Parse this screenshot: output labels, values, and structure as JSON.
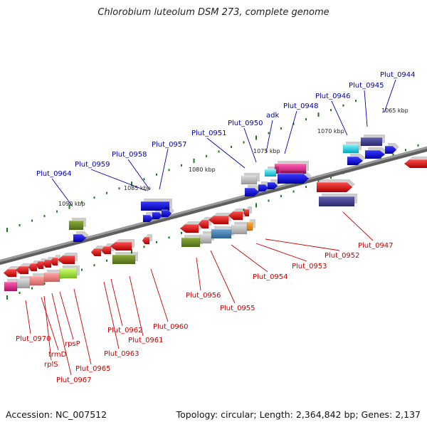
{
  "title": "Chlorobium luteolum DSM 273, complete genome",
  "accession": "Accession: NC_007512",
  "topology": "Topology: circular; Length: 2,364,842 bp; Genes: 2,137",
  "scale_labels": [
    "1065 kbp",
    "1070 kbp",
    "1075 kbp",
    "1080 kbp",
    "1085 kbp",
    "1090 kbp"
  ],
  "top_gene_labels": [
    "Plut_0944",
    "Plut_0945",
    "Plut_0946",
    "Plut_0948",
    "adk",
    "Plut_0950",
    "Plut_0951",
    "Plut_0957",
    "Plut_0958",
    "Plut_0959",
    "Plut_0964"
  ],
  "bottom_gene_labels": [
    "Plut_0947",
    "Plut_0952",
    "Plut_0953",
    "Plut_0954",
    "Plut_0955",
    "Plut_0956",
    "Plut_0960",
    "Plut_0961",
    "Plut_0962",
    "Plut_0963",
    "Plut_0965",
    "Plut_0967",
    "rplS",
    "trmD",
    "rpsP",
    "Plut_0970"
  ],
  "colors": {
    "top_label": "#0000b0",
    "bottom_label": "#cc0000",
    "backbone": "#808080",
    "tick": "#1a7a1a",
    "red": "#e00000",
    "blue": "#0000e0",
    "olive": "#6b8e23",
    "navy": "#3d3a8c",
    "gray": "#c0c0c0",
    "magenta": "#e0208a",
    "cyan": "#00d8e8",
    "steel": "#4682b4",
    "orange": "#ff8c00",
    "pink": "#f08080",
    "lime": "#a8f030"
  }
}
